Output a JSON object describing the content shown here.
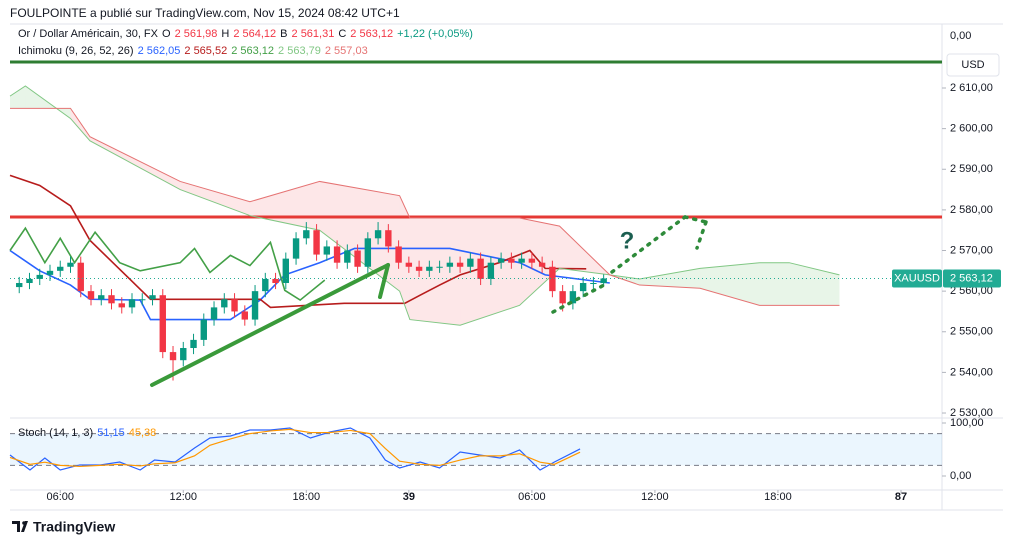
{
  "header": {
    "publisher": "FOULPOINTE a publié sur TradingView.com, Nov 15, 2024 08:42 UTC+1",
    "currency": "USD",
    "scale_top": "0,00",
    "footer": "TradingView"
  },
  "chart_data": [
    {
      "type": "candlestick",
      "title": "Or / Dollar Américain, 30, FX",
      "ohlc": [
        {
          "key": "O",
          "value": "2 561,98"
        },
        {
          "key": "H",
          "value": "2 564,12"
        },
        {
          "key": "B",
          "value": "2 561,31"
        },
        {
          "key": "C",
          "value": "2 563,12"
        }
      ],
      "change": "+1,22 (+0,05%)",
      "up_color": "#089981",
      "down_color": "#f23645",
      "x": [
        1,
        2,
        3,
        4,
        5,
        6,
        7,
        8,
        9,
        10,
        11,
        12,
        13,
        14,
        15,
        16,
        17,
        18,
        19,
        20,
        21,
        22,
        23,
        24,
        25,
        26,
        27,
        28,
        29,
        30,
        31,
        32,
        33,
        34,
        35,
        36,
        37,
        38,
        39,
        40,
        41,
        42,
        43,
        44,
        45,
        46,
        47,
        48,
        49,
        50,
        51,
        52,
        53,
        54,
        55,
        56,
        57,
        58
      ],
      "open": [
        2561,
        2562,
        2563,
        2564,
        2565,
        2566,
        2567,
        2560,
        2558,
        2559,
        2557,
        2556,
        2558,
        2558,
        2559,
        2545,
        2543,
        2546,
        2548,
        2553,
        2556,
        2558,
        2555,
        2553,
        2560,
        2563,
        2562,
        2568,
        2573,
        2575,
        2569,
        2571,
        2567,
        2570,
        2566,
        2573,
        2575,
        2571,
        2567,
        2566,
        2565,
        2566,
        2566,
        2567,
        2566,
        2568,
        2563,
        2567,
        2568,
        2567,
        2568,
        2567,
        2566,
        2560,
        2557,
        2560,
        2562,
        2561.98
      ],
      "high": [
        2563.5,
        2564.5,
        2565.5,
        2566.5,
        2567.5,
        2568.5,
        2568.5,
        2561.5,
        2560.5,
        2560.5,
        2558.5,
        2559.5,
        2559.5,
        2560.5,
        2560.5,
        2546.5,
        2547.5,
        2549.5,
        2554.5,
        2557.5,
        2559.5,
        2559.5,
        2556.5,
        2561.5,
        2564.5,
        2564.5,
        2569.5,
        2574.5,
        2577,
        2576.5,
        2572.5,
        2572.5,
        2571.5,
        2571.5,
        2574.5,
        2577,
        2576.5,
        2572.5,
        2568.5,
        2567.5,
        2567.5,
        2567.5,
        2568.5,
        2568.5,
        2569.5,
        2569.5,
        2568.5,
        2569.5,
        2569.5,
        2569.5,
        2569.5,
        2568.5,
        2567.5,
        2561.5,
        2561.5,
        2563.5,
        2563.5,
        2564.12
      ],
      "low": [
        2559.5,
        2560.5,
        2561.5,
        2562.5,
        2563.5,
        2564.5,
        2558.5,
        2556.5,
        2556.5,
        2555.5,
        2554.5,
        2554.5,
        2556.5,
        2556.5,
        2543.5,
        2538,
        2541.5,
        2544.5,
        2546.5,
        2551.5,
        2554.5,
        2553.5,
        2551.5,
        2551.5,
        2558.5,
        2560.5,
        2560.5,
        2566.5,
        2571.5,
        2567.5,
        2567.5,
        2565.5,
        2565.5,
        2564.5,
        2564.5,
        2571.5,
        2569.5,
        2565.5,
        2564.5,
        2563.5,
        2563.5,
        2564.5,
        2564.5,
        2564.5,
        2564.5,
        2561.5,
        2561.5,
        2565.5,
        2565.5,
        2565.5,
        2565.5,
        2564.5,
        2558.5,
        2555,
        2555.5,
        2558.5,
        2560.5,
        2561.31
      ],
      "close": [
        2562,
        2563,
        2564,
        2565,
        2566,
        2567,
        2560,
        2558,
        2559,
        2557,
        2556,
        2558,
        2558,
        2559,
        2545,
        2543,
        2546,
        2548,
        2553,
        2556,
        2558,
        2555,
        2553,
        2560,
        2563,
        2562,
        2568,
        2573,
        2575,
        2569,
        2571,
        2567,
        2570,
        2566,
        2573,
        2575,
        2571,
        2567,
        2566,
        2565,
        2566,
        2566,
        2567,
        2566,
        2568,
        2563,
        2567,
        2568,
        2567,
        2568,
        2567,
        2566,
        2560,
        2557,
        2560,
        2562,
        2562,
        2563.12
      ],
      "xlim": [
        0.1,
        91
      ],
      "ylim": [
        2529.02,
        2624.77
      ],
      "xticks": [
        {
          "value": 5,
          "label": "06:00"
        },
        {
          "value": 17,
          "label": "12:00"
        },
        {
          "value": 29,
          "label": "18:00"
        },
        39,
        {
          "value": 51,
          "label": "06:00"
        },
        {
          "value": 63,
          "label": "12:00"
        },
        {
          "value": 75,
          "label": "18:00"
        },
        87
      ],
      "yticks": [
        {
          "value": 2610,
          "label": "2 610,00"
        },
        {
          "value": 2600,
          "label": "2 600,00"
        },
        {
          "value": 2590,
          "label": "2 590,00"
        },
        {
          "value": 2580,
          "label": "2 580,00"
        },
        {
          "value": 2570,
          "label": "2 570,00"
        },
        {
          "value": 2560,
          "label": "2 560,00"
        },
        {
          "value": 2550,
          "label": "2 550,00"
        },
        {
          "value": 2540,
          "label": "2 540,00"
        },
        {
          "value": 2530,
          "label": "2 530,00"
        }
      ],
      "indicator": {
        "name": "Ichimoku (9, 26, 52, 26)",
        "cloud_up_color": "rgba(76,175,80,0.13)",
        "cloud_down_color": "rgba(242,54,69,0.12)",
        "series": [
          {
            "label": "2 562,05",
            "color": "#2962ff",
            "x": [
              0.1,
              3.0,
              6.0,
              7.9,
              12.8,
              13.8,
              17.7,
              21.6,
              24.5,
              26.9,
              30.3,
              33.7,
              43.0,
              49.8,
              52.3,
              58.6
            ],
            "values": [
              2570,
              2565,
              2561.5,
              2558,
              2557.8,
              2553,
              2553,
              2553,
              2557.8,
              2564,
              2567,
              2570.5,
              2570.5,
              2567,
              2564,
              2562
            ]
          },
          {
            "label": "2 565,52",
            "color": "#b71c1c",
            "x": [
              0.1,
              3.0,
              6.0,
              7.9,
              13.8,
              24.5,
              25.5,
              32.7,
              38.6,
              40.1,
              42.0,
              44.0,
              47.8,
              50.8,
              52.3,
              56.3
            ],
            "values": [
              2588.5,
              2586,
              2581,
              2572.5,
              2558,
              2558,
              2556,
              2557,
              2557,
              2559,
              2561.5,
              2564,
              2567,
              2570,
              2565.6,
              2565.5
            ]
          },
          {
            "label": "2 563,12",
            "color": "#43a047",
            "x": [
              0.1,
              1.6,
              3.5,
              5.0,
              6.4,
              8.4,
              10.8,
              12.8,
              16.7,
              18.1,
              19.6,
              21.6,
              23.5,
              25.5,
              26.9,
              28.4,
              30.8
            ],
            "values": [
              2570,
              2575.5,
              2567,
              2573,
              2567,
              2574.5,
              2567,
              2565,
              2567,
              2570.5,
              2564.6,
              2568.8,
              2566.3,
              2572,
              2560.2,
              2557.8,
              2562.7
            ]
          },
          {
            "label": "2 563,79",
            "color": "#81c784",
            "x": [
              0.1,
              1.6,
              6.0,
              7.9,
              16.7,
              23.5,
              30.3,
              38.1,
              39.1,
              44.0,
              49.8,
              53.7,
              58.6,
              61.5,
              67.4,
              73.2,
              76.1,
              81.0
            ],
            "values": [
              2608,
              2610.5,
              2602.5,
              2597,
              2585,
              2578.6,
              2575,
              2560,
              2553,
              2551.6,
              2556.5,
              2565.6,
              2564,
              2563,
              2565.6,
              2567,
              2567,
              2564
            ]
          },
          {
            "label": "2 557,03",
            "color": "#e57373",
            "x": [
              0.1,
              1.6,
              6.0,
              7.9,
              16.7,
              23.5,
              30.3,
              38.1,
              39.1,
              44.0,
              49.8,
              53.7,
              58.6,
              61.5,
              67.4,
              73.2,
              76.1,
              81.0
            ],
            "values": [
              2605,
              2605,
              2605,
              2598,
              2587,
              2582,
              2587,
              2583.5,
              2578,
              2578,
              2578,
              2576,
              2564,
              2561.5,
              2560.7,
              2556.5,
              2556.5,
              2556.5
            ]
          }
        ]
      },
      "levels": [
        {
          "value": 2616.4,
          "color": "#2e7d32"
        },
        {
          "value": 2578.25,
          "color": "#e53935"
        }
      ],
      "last_price": {
        "symbol": "XAUUSD",
        "value": 2563.12,
        "label": "2 563,12",
        "color": "#22ab94"
      },
      "annotations": [
        "?"
      ]
    },
    {
      "type": "line",
      "title": "Stoch (14, 1, 3)",
      "xlim": [
        0.1,
        91
      ],
      "ylim": [
        -26.42,
        105.66
      ],
      "yticks": [
        {
          "value": 100,
          "label": "100,00"
        },
        {
          "value": 0,
          "label": "0,00"
        }
      ],
      "bands": [
        20,
        80
      ],
      "band_color": "rgba(33,150,243,0.09)",
      "series": [
        {
          "label": "51,15",
          "color": "#2962ff",
          "x": [
            0.1,
            2.05,
            3.5,
            5.0,
            6.9,
            8.9,
            10.8,
            12.8,
            14.2,
            16.2,
            18.1,
            19.6,
            21.6,
            23.5,
            25.5,
            27.4,
            29.4,
            31.3,
            33.3,
            35.2,
            36.7,
            38.1,
            40.1,
            42.0,
            44.0,
            45.9,
            47.9,
            49.8,
            51.8,
            53.2,
            55.7
          ],
          "values": [
            39.6,
            11.3,
            34,
            11.3,
            20.8,
            20.8,
            26.4,
            11.3,
            30.2,
            26.4,
            52.8,
            71.7,
            75.5,
            86.8,
            86.8,
            90.6,
            71.7,
            83,
            90.6,
            71.7,
            30.2,
            15.1,
            26.4,
            15.1,
            45.3,
            39.6,
            34,
            49.1,
            11.3,
            26.4,
            51
          ]
        },
        {
          "label": "45,38",
          "color": "#ff9800",
          "x": [
            0.1,
            2.05,
            3.5,
            5.0,
            6.9,
            8.9,
            10.8,
            12.8,
            14.2,
            16.2,
            18.1,
            19.6,
            21.6,
            23.5,
            25.5,
            27.4,
            29.4,
            31.3,
            33.3,
            35.2,
            36.7,
            38.1,
            40.1,
            42.0,
            44.0,
            45.9,
            47.9,
            49.8,
            51.8,
            53.2,
            55.7
          ],
          "values": [
            35,
            22,
            26,
            20,
            18,
            20,
            22,
            19,
            23,
            25,
            38,
            58,
            70,
            80,
            85,
            88,
            82,
            82,
            86,
            80,
            52,
            28,
            22,
            20,
            30,
            38,
            38,
            42,
            26,
            22,
            45
          ]
        }
      ]
    }
  ]
}
